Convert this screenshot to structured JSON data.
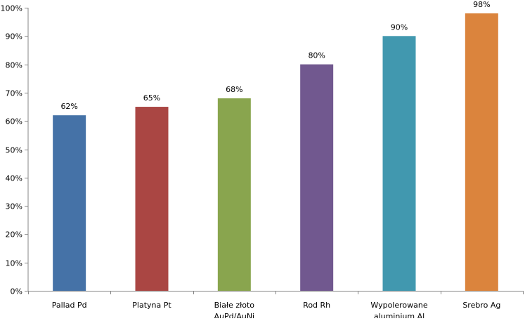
{
  "chart_data": {
    "type": "bar",
    "title": "",
    "xlabel": "",
    "ylabel": "",
    "categories": [
      [
        "Pallad Pd"
      ],
      [
        "Platyna Pt"
      ],
      [
        "Białe złoto",
        "AuPd/AuNi"
      ],
      [
        "Rod Rh"
      ],
      [
        "Wypolerowane",
        "aluminium Al"
      ],
      [
        "Srebro Ag"
      ]
    ],
    "values": [
      62,
      65,
      68,
      80,
      90,
      98
    ],
    "data_labels": [
      "62%",
      "65%",
      "68%",
      "80%",
      "90%",
      "98%"
    ],
    "ylim": [
      0,
      100
    ],
    "yticks": [
      0,
      10,
      20,
      30,
      40,
      50,
      60,
      70,
      80,
      90,
      100
    ],
    "ytick_labels": [
      "0%",
      "10%",
      "20%",
      "30%",
      "40%",
      "50%",
      "60%",
      "70%",
      "80%",
      "90%",
      "100%"
    ],
    "grid": false,
    "legend": "none",
    "colors": [
      "#4572A7",
      "#AA4643",
      "#89A54E",
      "#71588F",
      "#4198AF",
      "#DB843D"
    ],
    "axis_color": "#868686"
  }
}
